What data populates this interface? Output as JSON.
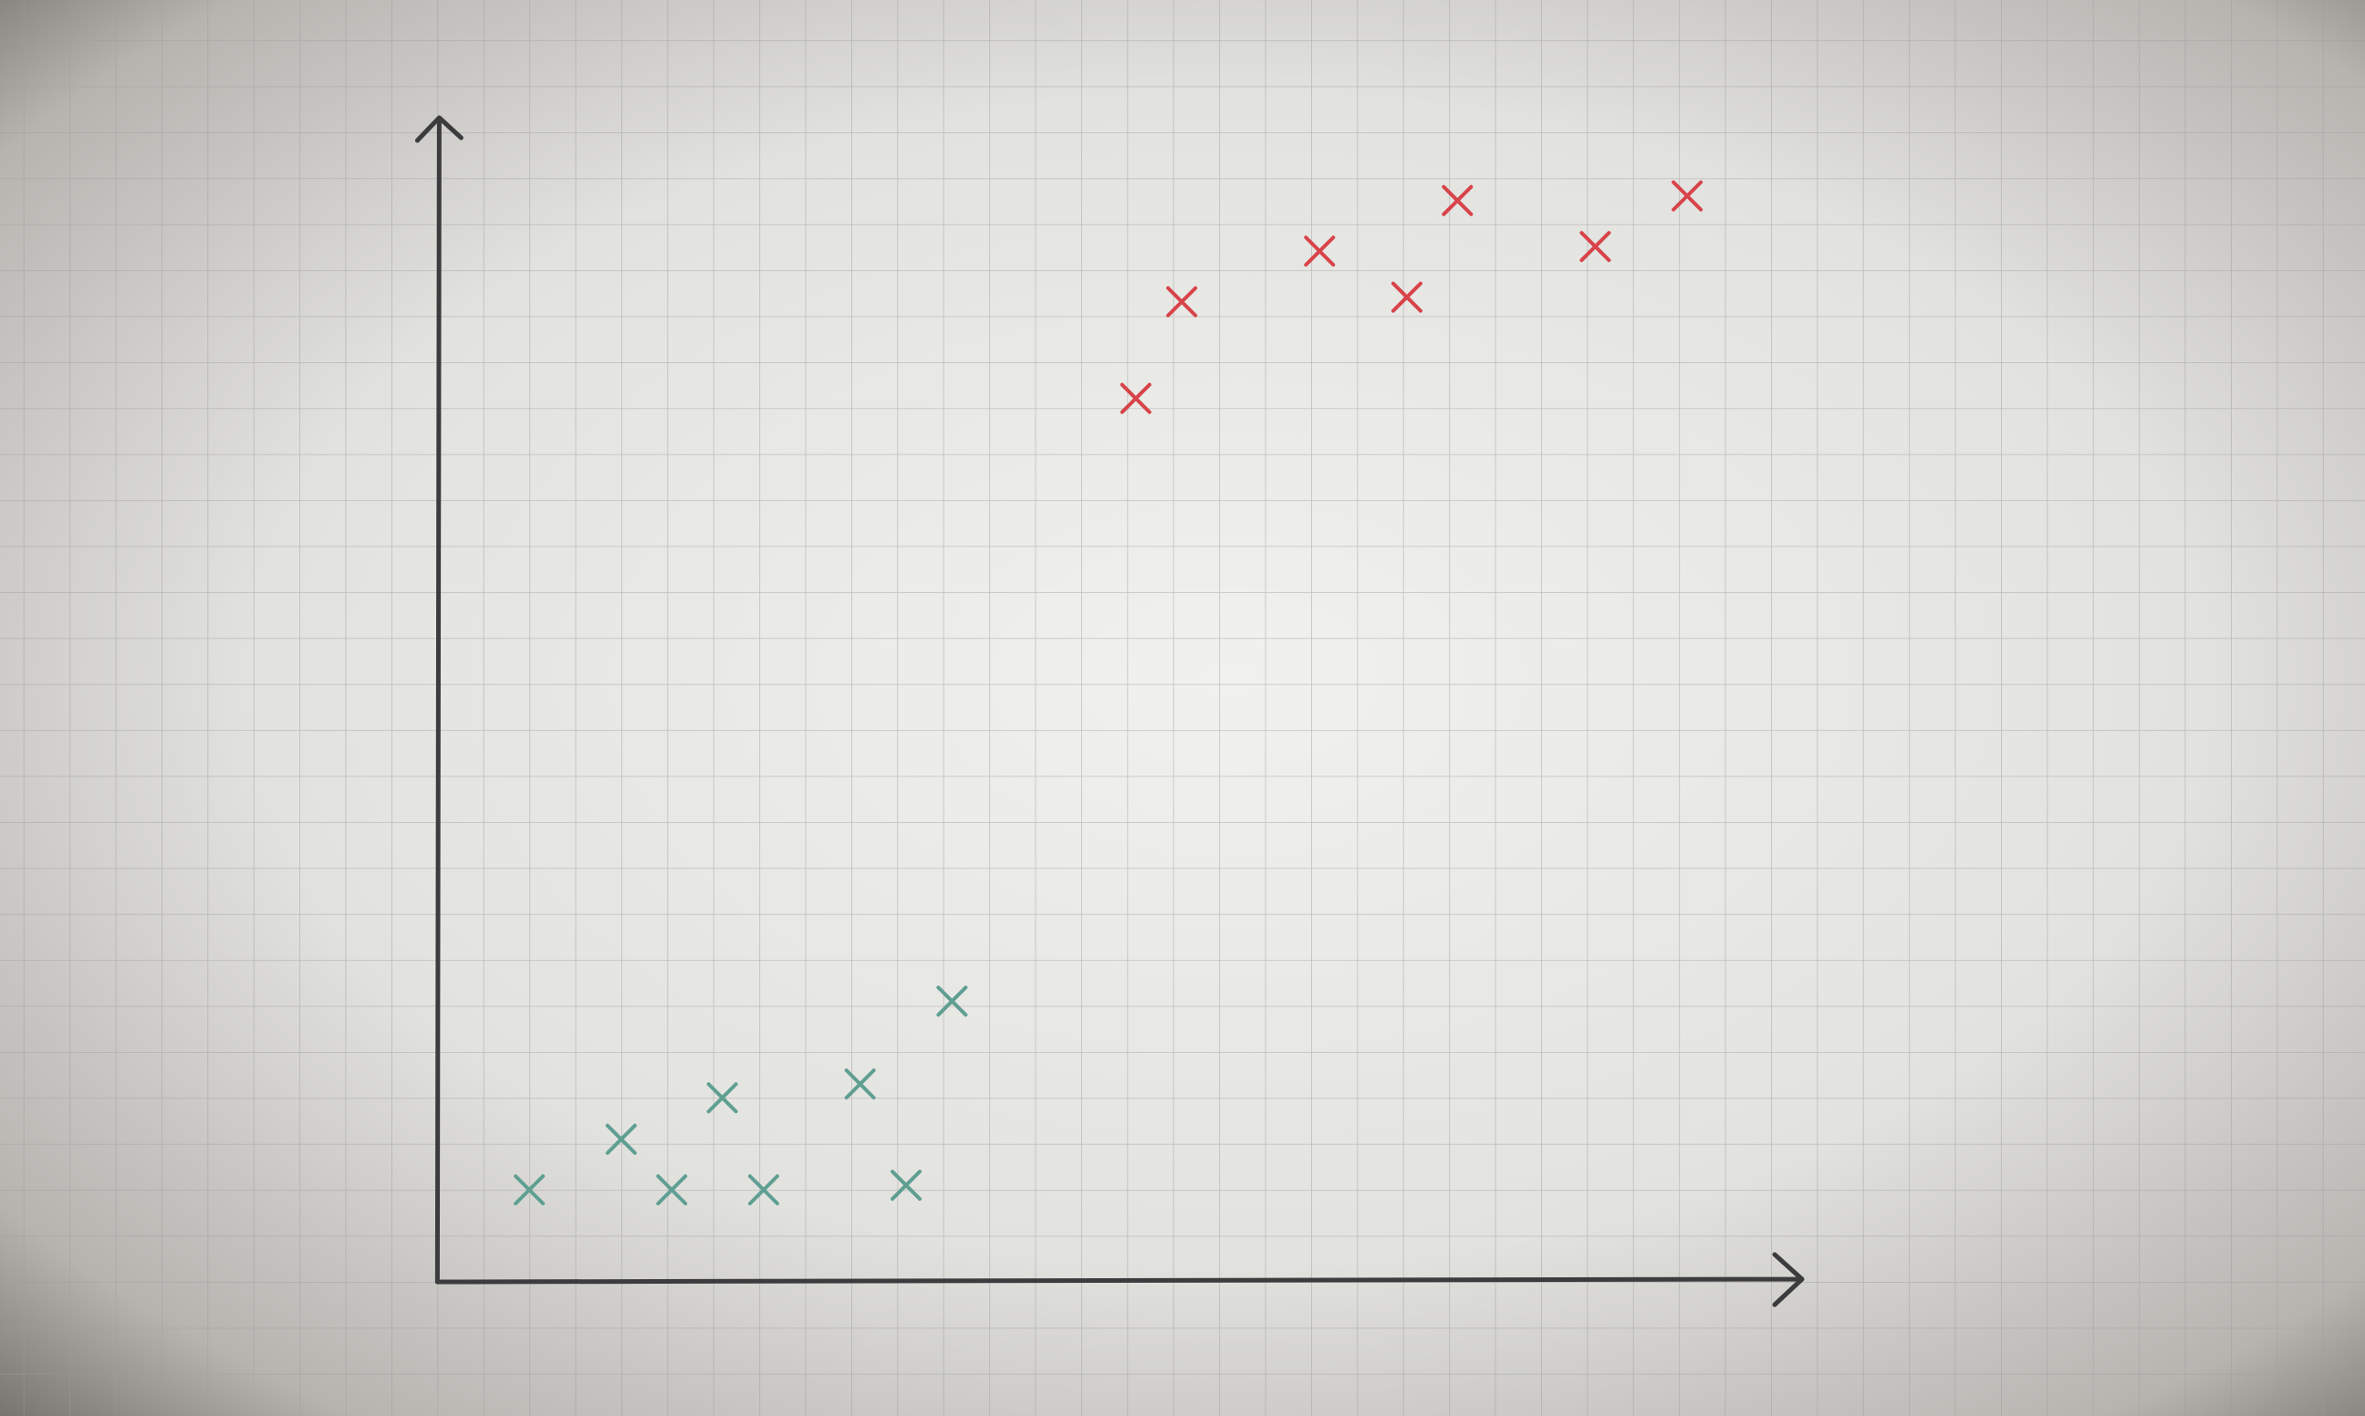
{
  "chart_data": {
    "type": "scatter",
    "xlim": [
      0,
      29.7
    ],
    "ylim": [
      0,
      25.3
    ],
    "grid": true,
    "series": [
      {
        "color": "#5f9f92",
        "x": [
          2.0,
          4.0,
          5.1,
          6.2,
          7.1,
          9.2,
          10.2,
          11.2
        ],
        "values": [
          2.0,
          3.1,
          2.0,
          4.0,
          2.0,
          4.3,
          2.1,
          6.1
        ]
      },
      {
        "color": "#d8434a",
        "x": [
          15.2,
          16.2,
          19.2,
          21.1,
          22.2,
          25.2,
          27.2
        ],
        "values": [
          19.2,
          21.3,
          22.4,
          21.4,
          23.5,
          22.5,
          23.6
        ]
      }
    ]
  }
}
